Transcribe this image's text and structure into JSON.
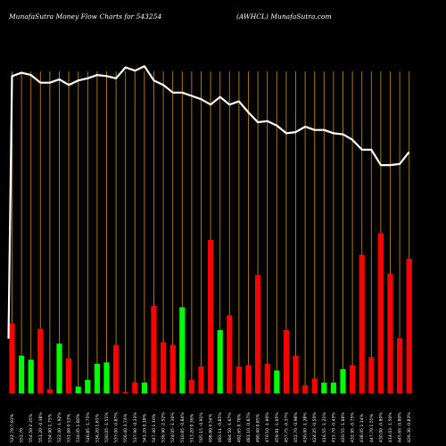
{
  "header": {
    "title": "MunafaSutra  Money Flow  Charts for 543254",
    "company": "(AWHCL) MunafaSutra.com"
  },
  "colors": {
    "background": "#000000",
    "gridline": "#b8860b",
    "up": "#00ff00",
    "down": "#ff0000",
    "price_line": "#ffffff",
    "text": "#ffffff"
  },
  "chart_data": {
    "type": "bar",
    "description_kind": "money flow bars with price line overlay",
    "x_tick_labels": [
      "522.70 7.93%",
      "552.70 ",
      "554.50 2.35%",
      "551.20 -0.38%",
      "534.90 1.75%",
      "522.40 -1.92%",
      "531.60 0.53%",
      "534.05 1.80%",
      "526.85 -1.75%",
      "536.20 1.81%",
      "530.05 -1.51%",
      "537.00 -0.87%",
      "556.40 3.74%",
      "537.90 -0.33%",
      "541.20 0.18%",
      "547.40 1.10%",
      "536.90 -2.52%",
      "524.05 -1.36%",
      "510.85 -0.84%",
      "513.20 0.36%",
      "505.15 -0.91%",
      "498.80 0.54%",
      "493.11 -0.85%",
      "484.50 -1.67%",
      "492.65 0.78%",
      "481.10 -0.87%",
      "490.40 0.85%",
      "470.10 -1.90%",
      "459.91 -1.65%",
      "457.75 -0.37%",
      "452.70 -0.98%",
      "430.00 -1.28%",
      "424.25 -0.50%",
      "416.55 -1.21%",
      "413.70 -0.43%",
      "420.55 -1.66%",
      "432.95 -0.75%",
      "438.05 1.14%",
      "447.70 1.55%",
      "430.00 -0.80%",
      "414.03 -1.50%",
      "445.65 -0.80%",
      "426.36 -0.83%"
    ],
    "flow_direction": [
      "down",
      "up",
      "up",
      "down",
      "down",
      "up",
      "down",
      "up",
      "up",
      "up",
      "up",
      "down",
      "down",
      "down",
      "up",
      "down",
      "down",
      "down",
      "up",
      "down",
      "down",
      "down",
      "up",
      "down",
      "down",
      "down",
      "down",
      "down",
      "up",
      "down",
      "down",
      "down",
      "down",
      "up",
      "up",
      "up",
      "down",
      "down",
      "down",
      "down",
      "down",
      "down",
      "down"
    ],
    "money_flow": [
      52,
      28,
      25,
      48,
      3,
      37,
      26,
      5,
      10,
      22,
      23,
      36,
      1,
      8,
      8,
      65,
      38,
      36,
      64,
      10,
      20,
      114,
      47,
      58,
      20,
      21,
      88,
      22,
      17,
      47,
      28,
      6,
      11,
      8,
      8,
      18,
      21,
      103,
      27,
      119,
      89,
      41,
      100
    ],
    "price": [
      555.0,
      558.0,
      556.0,
      549.0,
      549.0,
      552.0,
      547.0,
      551.0,
      553.0,
      556.0,
      555.0,
      553.0,
      563.0,
      560.0,
      564.0,
      551.0,
      547.0,
      540.0,
      540.0,
      537.0,
      534.0,
      529.0,
      536.0,
      529.0,
      532.0,
      522.0,
      513.0,
      514.0,
      510.0,
      503.0,
      504.0,
      509.0,
      506.0,
      506.0,
      503.0,
      502.0,
      497.0,
      488.0,
      488.0,
      474.0,
      474.0,
      475.0,
      486.0
    ],
    "price_start": 316.0,
    "ylim_flow": [
      0,
      120
    ],
    "ylim_price": [
      470,
      565
    ],
    "grid": true
  }
}
